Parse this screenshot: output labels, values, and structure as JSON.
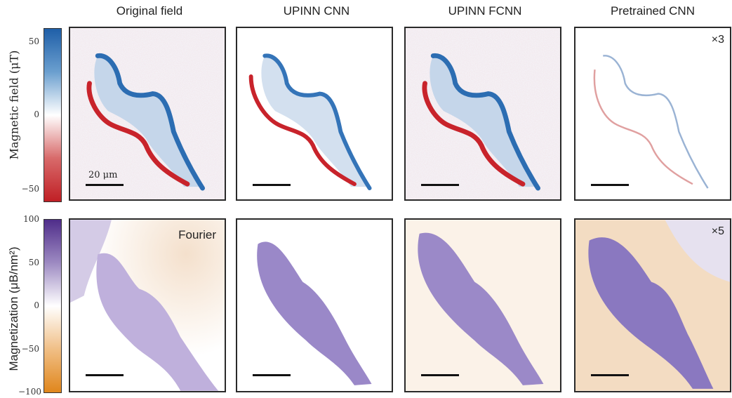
{
  "columns": [
    "Original field",
    "UPINN CNN",
    "UPINN FCNN",
    "Pretrained CNN"
  ],
  "row1": {
    "ylabel": "Magnetic field (μT)",
    "ticks": [
      "50",
      "0",
      "−50"
    ],
    "scale_label": "20 μm",
    "multiplier": "×3",
    "colors": {
      "top": "#2166ac",
      "mid": "#ffffff",
      "bottom": "#c62d2d"
    }
  },
  "row2": {
    "ylabel": "Magnetization (μB/nm²)",
    "ticks": [
      "100",
      "50",
      "0",
      "−50",
      "−100"
    ],
    "fourier_label": "Fourier",
    "multiplier": "×5",
    "colors": {
      "top": "#5b3a95",
      "mid": "#ffffff",
      "bottom": "#e08a24"
    }
  }
}
